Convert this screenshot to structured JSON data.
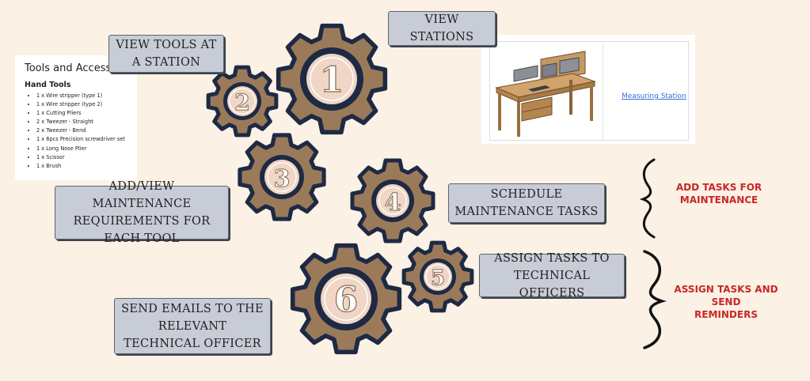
{
  "steps": [
    {
      "number": "1",
      "label": "VIEW STATIONS"
    },
    {
      "number": "2",
      "label": "VIEW TOOLS AT A STATION"
    },
    {
      "number": "3",
      "label": "ADD/VIEW MAINTENANCE REQUIREMENTS FOR EACH TOOL"
    },
    {
      "number": "4",
      "label": "SCHEDULE MAINTENANCE TASKS"
    },
    {
      "number": "5",
      "label": "ASSIGN TASKS TO TECHNICAL OFFICERS"
    },
    {
      "number": "6",
      "label": "SEND EMAILS TO THE RELEVANT TECHNICAL OFFICER"
    }
  ],
  "tools_panel": {
    "title": "Tools and Accessories",
    "subtitle": "Hand Tools",
    "items": [
      "1 x Wire stripper (type 1)",
      "1 x Wire stripper (type 2)",
      "1 x Cutting Pliers",
      "2 x Tweezer - Straight",
      "2 x Tweezer - Bend",
      "1 x 6pcs Precision screwdriver set",
      "1 x Long Nose Plier",
      "1 x Scissor",
      "1 x Brush"
    ]
  },
  "station_panel": {
    "link": "Measuring Station"
  },
  "groups": [
    {
      "label_line1": "ADD TASKS FOR",
      "label_line2": "MAINTENANCE"
    },
    {
      "label_line1": "ASSIGN TASKS AND SEND",
      "label_line2": "REMINDERS"
    }
  ],
  "colors": {
    "background": "#fbf1e4",
    "gear": "#9b7a5a",
    "gear_outline": "#1e2a44",
    "gear_center": "#efd6c6",
    "box_fill": "#c7ccd6",
    "accent_red": "#c62828",
    "link": "#2f6fd6"
  }
}
